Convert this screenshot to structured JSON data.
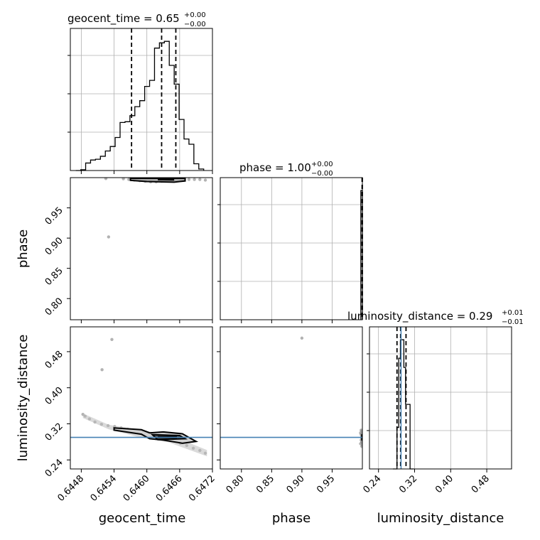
{
  "chart_data": {
    "type": "corner",
    "parameters": [
      "geocent_time",
      "phase",
      "luminosity_distance"
    ],
    "titles": {
      "geocent_time": {
        "label": "geocent_time = 0.65",
        "plus": "+0.00",
        "minus": "−0.00"
      },
      "phase": {
        "label": "phase = 1.00",
        "plus": "+0.00",
        "minus": "−0.00"
      },
      "luminosity_distance": {
        "label": "luminosity_distance = 0.29",
        "plus": "+0.01",
        "minus": "−0.01"
      }
    },
    "axis_ranges": {
      "geocent_time": [
        0.6446,
        0.6472
      ],
      "phase": [
        0.765,
        1.0
      ],
      "luminosity_distance": [
        0.22,
        0.535
      ]
    },
    "ticks": {
      "geocent_time": [
        "0.6448",
        "0.6454",
        "0.6460",
        "0.6466",
        "0.6472"
      ],
      "phase": [
        "0.80",
        "0.85",
        "0.90",
        "0.95"
      ],
      "luminosity_distance": [
        "0.24",
        "0.32",
        "0.40",
        "0.48"
      ]
    },
    "grid": true,
    "truth": {
      "luminosity_distance": 0.29
    },
    "truth_color": "#4682b4",
    "contour_color": "#000000",
    "quantile_lines": {
      "geocent_time": [
        0.64572,
        0.64627,
        0.64653
      ],
      "phase": [
        0.9995,
        1.0
      ],
      "luminosity_distance": [
        0.281,
        0.289,
        0.301
      ]
    },
    "histograms": {
      "geocent_time": {
        "edges": [
          0.6447,
          0.64479,
          0.64488,
          0.64497,
          0.64506,
          0.64515,
          0.64524,
          0.64533,
          0.64542,
          0.64551,
          0.6456,
          0.64569,
          0.64578,
          0.64587,
          0.64596,
          0.64605,
          0.64614,
          0.64623,
          0.64632,
          0.64641,
          0.6465,
          0.64659,
          0.64668,
          0.64677,
          0.64686,
          0.64695,
          0.64704
        ],
        "counts": [
          0,
          1,
          10,
          14,
          15,
          19,
          26,
          32,
          44,
          64,
          65,
          73,
          85,
          93,
          112,
          120,
          163,
          170,
          172,
          140,
          115,
          68,
          42,
          35,
          9,
          2
        ]
      },
      "phase": {
        "edges": [
          0.9975,
          0.9995,
          1.0
        ],
        "counts": [
          185,
          185
        ]
      },
      "luminosity_distance": {
        "edges": [
          0.272,
          0.281,
          0.2848,
          0.2886,
          0.2924,
          0.2962,
          0.3,
          0.31,
          0.318
        ],
        "counts": [
          0,
          45,
          120,
          140,
          140,
          110,
          70,
          0
        ]
      }
    },
    "scatter": {
      "geocent_time_vs_luminosity_distance": {
        "x": [
          0.64483,
          0.64487,
          0.64495,
          0.64505,
          0.64517,
          0.64529,
          0.64541,
          0.64553,
          0.64565,
          0.64577,
          0.64589,
          0.64601,
          0.64613,
          0.64625,
          0.64637,
          0.64649,
          0.64661,
          0.64673,
          0.64685,
          0.64697,
          0.64707,
          0.64536,
          0.64518
        ],
        "y": [
          0.341,
          0.337,
          0.331,
          0.324,
          0.319,
          0.316,
          0.314,
          0.311,
          0.308,
          0.305,
          0.302,
          0.298,
          0.294,
          0.291,
          0.287,
          0.282,
          0.277,
          0.272,
          0.266,
          0.261,
          0.255,
          0.507,
          0.44
        ]
      },
      "geocent_time_vs_phase": {
        "x": [
          0.64525,
          0.64557,
          0.64567,
          0.64577,
          0.64587,
          0.64597,
          0.64607,
          0.64617,
          0.64627,
          0.64637,
          0.64647,
          0.64657,
          0.64667,
          0.64677,
          0.64687,
          0.64697,
          0.64707,
          0.6453
        ],
        "y": [
          0.9985,
          0.9982,
          0.997,
          0.996,
          0.995,
          0.994,
          0.993,
          0.993,
          0.994,
          0.995,
          0.995,
          0.996,
          0.997,
          0.997,
          0.997,
          0.997,
          0.996,
          0.902
        ]
      },
      "phase_vs_luminosity_distance": {
        "x": [
          0.997,
          0.998,
          0.999,
          0.999,
          0.998,
          0.999,
          0.997,
          0.9,
          0.999,
          0.998
        ],
        "y": [
          0.3,
          0.296,
          0.292,
          0.288,
          0.284,
          0.28,
          0.276,
          0.51,
          0.27,
          0.306
        ]
      }
    }
  }
}
